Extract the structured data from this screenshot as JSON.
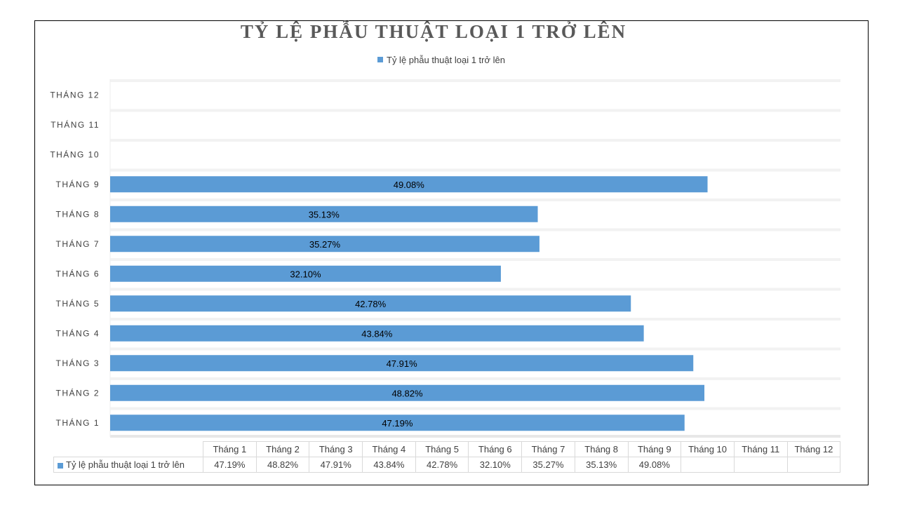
{
  "chart_data": {
    "type": "bar",
    "orientation": "horizontal",
    "title": "TỶ LỆ PHẪU THUẬT LOẠI 1 TRỞ LÊN",
    "legend_position": "top",
    "xlim": [
      0,
      60
    ],
    "categories": [
      "THÁNG 1",
      "THÁNG 2",
      "THÁNG 3",
      "THÁNG 4",
      "THÁNG 5",
      "THÁNG 6",
      "THÁNG 7",
      "THÁNG 8",
      "THÁNG 9",
      "THÁNG 10",
      "THÁNG 11",
      "THÁNG 12"
    ],
    "series": [
      {
        "name": "Tỷ lệ phẫu thuật loại 1 trở lên",
        "values": [
          47.19,
          48.82,
          47.91,
          43.84,
          42.78,
          32.1,
          35.27,
          35.13,
          49.08,
          null,
          null,
          null
        ],
        "data_labels": [
          "47.19%",
          "48.82%",
          "47.91%",
          "43.84%",
          "42.78%",
          "32.10%",
          "35.27%",
          "35.13%",
          "49.08%",
          "",
          "",
          ""
        ],
        "color": "#5b9bd5"
      }
    ],
    "data_table": {
      "headers": [
        "Tháng 1",
        "Tháng 2",
        "Tháng 3",
        "Tháng 4",
        "Tháng 5",
        "Tháng 6",
        "Tháng 7",
        "Tháng 8",
        "Tháng 9",
        "Tháng 10",
        "Tháng 11",
        "Tháng 12"
      ],
      "series_label": "Tỷ lệ phẫu thuật loại 1 trở lên",
      "values": [
        "47.19%",
        "48.82%",
        "47.91%",
        "43.84%",
        "42.78%",
        "32.10%",
        "35.27%",
        "35.13%",
        "49.08%",
        "",
        "",
        ""
      ]
    }
  },
  "colors": {
    "bar": "#5b9bd5",
    "band": "#f2f2f2",
    "frame": "#000000"
  }
}
